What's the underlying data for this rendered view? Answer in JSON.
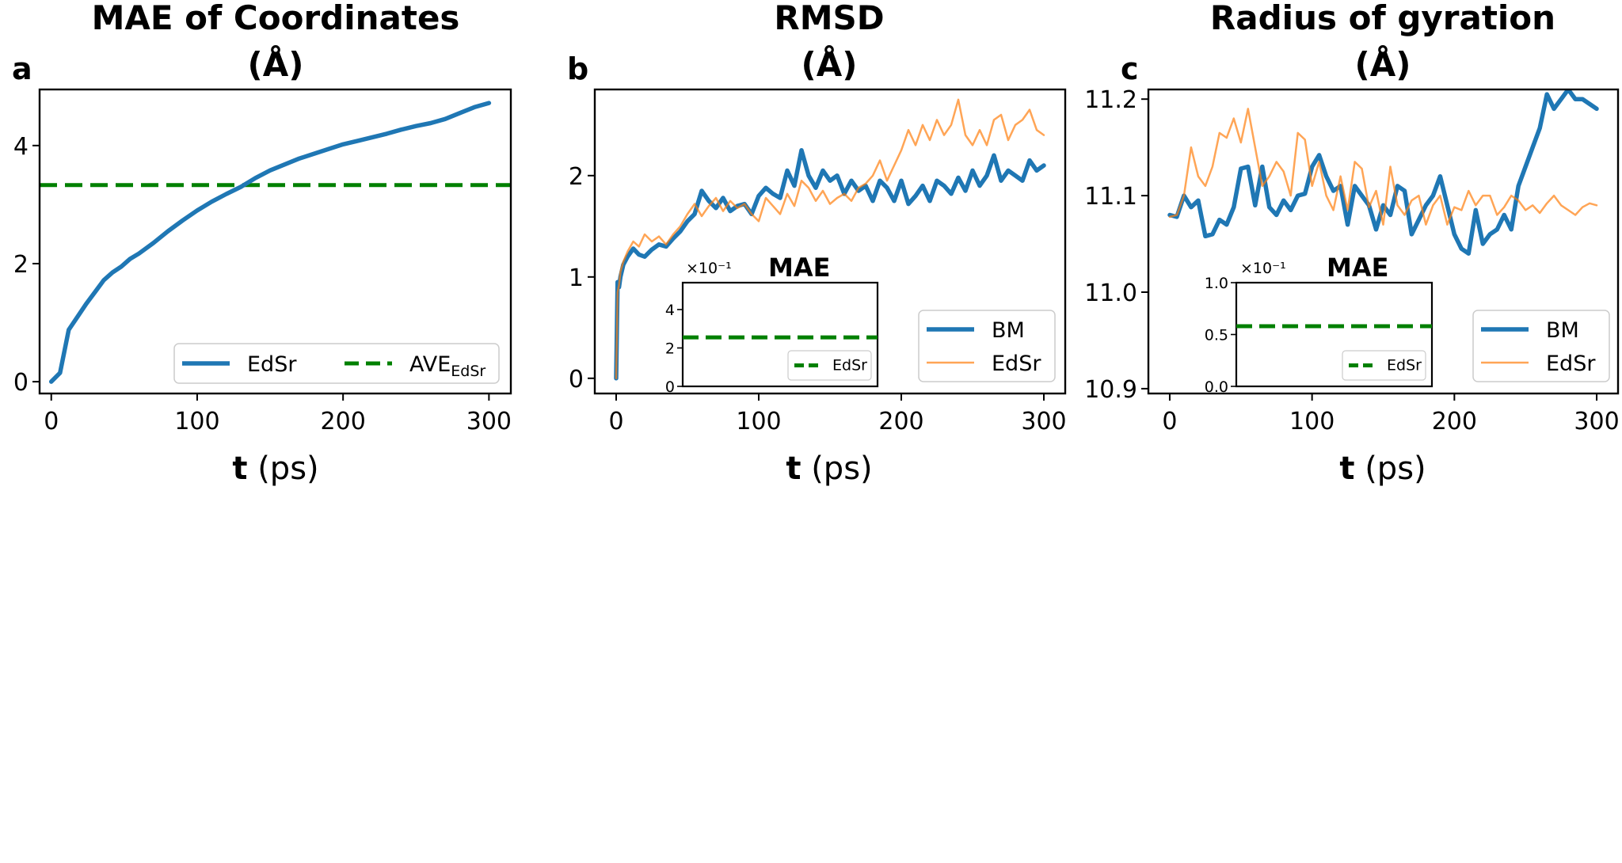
{
  "chart_data": [
    {
      "panel": "a",
      "type": "line",
      "title_line1": "MAE of Coordinates",
      "title_line2": "(Å)",
      "xlabel_bold": "t",
      "xlabel_rest": " (ps)",
      "xlim": [
        -8,
        315
      ],
      "ylim": [
        -0.2,
        4.95
      ],
      "xticks": [
        0,
        100,
        200,
        300
      ],
      "yticks": [
        0,
        2,
        4
      ],
      "legend": [
        "EdSr",
        "AVE",
        "EdSr"
      ],
      "series": [
        {
          "name": "EdSr",
          "color": "#1f77b4",
          "x": [
            0,
            6,
            12,
            18,
            24,
            30,
            36,
            42,
            48,
            54,
            60,
            70,
            80,
            90,
            100,
            110,
            120,
            130,
            140,
            150,
            160,
            170,
            180,
            190,
            200,
            210,
            220,
            230,
            240,
            250,
            260,
            270,
            280,
            290,
            300
          ],
          "y": [
            0,
            0.15,
            0.88,
            1.1,
            1.32,
            1.52,
            1.72,
            1.85,
            1.95,
            2.08,
            2.17,
            2.35,
            2.55,
            2.73,
            2.9,
            3.05,
            3.18,
            3.3,
            3.45,
            3.58,
            3.68,
            3.78,
            3.86,
            3.94,
            4.02,
            4.08,
            4.14,
            4.2,
            4.27,
            4.33,
            4.38,
            4.45,
            4.55,
            4.65,
            4.72
          ]
        }
      ],
      "average": {
        "name": "AVE",
        "subscript": "EdSr",
        "value": 3.33,
        "color": "#008000"
      }
    },
    {
      "panel": "b",
      "type": "line",
      "title_line1": "RMSD",
      "title_line2": "(Å)",
      "xlabel_bold": "t",
      "xlabel_rest": " (ps)",
      "xlim": [
        -15,
        315
      ],
      "ylim": [
        -0.15,
        2.85
      ],
      "xticks": [
        0,
        100,
        200,
        300
      ],
      "yticks": [
        0,
        1,
        2
      ],
      "legend": [
        "BM",
        "EdSr"
      ],
      "series": [
        {
          "name": "BM",
          "color": "#1f77b4",
          "x": [
            0,
            1,
            2,
            3,
            5,
            8,
            12,
            16,
            20,
            25,
            30,
            35,
            40,
            45,
            50,
            55,
            60,
            65,
            70,
            75,
            80,
            85,
            90,
            95,
            100,
            105,
            110,
            115,
            120,
            125,
            130,
            135,
            140,
            145,
            150,
            155,
            160,
            165,
            170,
            175,
            180,
            185,
            190,
            195,
            200,
            205,
            210,
            215,
            220,
            225,
            230,
            235,
            240,
            245,
            250,
            255,
            260,
            265,
            270,
            275,
            280,
            285,
            290,
            295,
            300
          ],
          "y": [
            0,
            0.95,
            0.9,
            1.0,
            1.12,
            1.2,
            1.28,
            1.22,
            1.2,
            1.27,
            1.32,
            1.3,
            1.38,
            1.45,
            1.55,
            1.62,
            1.85,
            1.75,
            1.68,
            1.78,
            1.65,
            1.7,
            1.72,
            1.62,
            1.8,
            1.88,
            1.82,
            1.78,
            2.05,
            1.9,
            2.25,
            2.0,
            1.88,
            2.05,
            1.95,
            2.0,
            1.82,
            1.95,
            1.85,
            1.9,
            1.75,
            1.95,
            1.88,
            1.75,
            1.95,
            1.72,
            1.8,
            1.9,
            1.75,
            1.95,
            1.9,
            1.82,
            1.98,
            1.85,
            2.05,
            1.9,
            2.0,
            2.2,
            1.95,
            2.05,
            2.0,
            1.95,
            2.15,
            2.05,
            2.1
          ]
        },
        {
          "name": "EdSr",
          "color": "#ff7f0e",
          "x": [
            0,
            1,
            2,
            3,
            5,
            8,
            12,
            16,
            20,
            25,
            30,
            35,
            40,
            45,
            50,
            55,
            60,
            65,
            70,
            75,
            80,
            85,
            90,
            95,
            100,
            105,
            110,
            115,
            120,
            125,
            130,
            135,
            140,
            145,
            150,
            155,
            160,
            165,
            170,
            175,
            180,
            185,
            190,
            195,
            200,
            205,
            210,
            215,
            220,
            225,
            230,
            235,
            240,
            245,
            250,
            255,
            260,
            265,
            270,
            275,
            280,
            285,
            290,
            295,
            300
          ],
          "y": [
            0,
            0.85,
            0.92,
            1.05,
            1.15,
            1.25,
            1.35,
            1.3,
            1.42,
            1.35,
            1.4,
            1.32,
            1.42,
            1.5,
            1.62,
            1.72,
            1.6,
            1.7,
            1.78,
            1.65,
            1.75,
            1.68,
            1.72,
            1.62,
            1.55,
            1.78,
            1.7,
            1.62,
            1.82,
            1.7,
            1.95,
            1.88,
            1.75,
            1.85,
            1.72,
            1.78,
            1.82,
            1.75,
            1.88,
            1.92,
            2.0,
            2.15,
            1.95,
            2.1,
            2.25,
            2.45,
            2.3,
            2.5,
            2.35,
            2.55,
            2.4,
            2.5,
            2.75,
            2.4,
            2.3,
            2.45,
            2.3,
            2.55,
            2.6,
            2.35,
            2.5,
            2.55,
            2.65,
            2.45,
            2.4
          ]
        }
      ],
      "inset": {
        "title": "MAE",
        "scale_label": "×10⁻¹",
        "ylim": [
          0,
          5.4
        ],
        "yticks": [
          0,
          2,
          4
        ],
        "value": 2.55,
        "legend": "EdSr",
        "color": "#008000"
      }
    },
    {
      "panel": "c",
      "type": "line",
      "title_line1": "Radius of gyration",
      "title_line2": "(Å)",
      "xlabel_bold": "t",
      "xlabel_rest": " (ps)",
      "xlim": [
        -15,
        315
      ],
      "ylim": [
        10.895,
        11.21
      ],
      "xticks": [
        0,
        100,
        200,
        300
      ],
      "yticks": [
        10.9,
        11.0,
        11.1,
        11.2
      ],
      "ytick_labels": [
        "10.9",
        "11.0",
        "11.1",
        "11.2"
      ],
      "legend": [
        "BM",
        "EdSr"
      ],
      "series": [
        {
          "name": "BM",
          "color": "#1f77b4",
          "x": [
            0,
            5,
            10,
            15,
            20,
            25,
            30,
            35,
            40,
            45,
            50,
            55,
            60,
            65,
            70,
            75,
            80,
            85,
            90,
            95,
            100,
            105,
            110,
            115,
            120,
            125,
            130,
            135,
            140,
            145,
            150,
            155,
            160,
            165,
            170,
            175,
            180,
            185,
            190,
            195,
            200,
            205,
            210,
            215,
            220,
            225,
            230,
            235,
            240,
            245,
            250,
            255,
            260,
            265,
            270,
            275,
            280,
            285,
            290,
            295,
            300
          ],
          "y": [
            11.08,
            11.078,
            11.1,
            11.088,
            11.095,
            11.058,
            11.06,
            11.075,
            11.07,
            11.088,
            11.128,
            11.13,
            11.09,
            11.13,
            11.088,
            11.08,
            11.095,
            11.085,
            11.1,
            11.102,
            11.13,
            11.142,
            11.12,
            11.105,
            11.11,
            11.07,
            11.11,
            11.1,
            11.09,
            11.065,
            11.09,
            11.08,
            11.11,
            11.105,
            11.06,
            11.075,
            11.09,
            11.1,
            11.12,
            11.09,
            11.06,
            11.045,
            11.04,
            11.085,
            11.05,
            11.06,
            11.065,
            11.08,
            11.065,
            11.11,
            11.13,
            11.15,
            11.17,
            11.205,
            11.19,
            11.2,
            11.21,
            11.2,
            11.2,
            11.195,
            11.19
          ]
        },
        {
          "name": "EdSr",
          "color": "#ff7f0e",
          "x": [
            0,
            5,
            10,
            15,
            20,
            25,
            30,
            35,
            40,
            45,
            50,
            55,
            60,
            65,
            70,
            75,
            80,
            85,
            90,
            95,
            100,
            105,
            110,
            115,
            120,
            125,
            130,
            135,
            140,
            145,
            150,
            155,
            160,
            165,
            170,
            175,
            180,
            185,
            190,
            195,
            200,
            205,
            210,
            215,
            220,
            225,
            230,
            235,
            240,
            245,
            250,
            255,
            260,
            265,
            270,
            275,
            280,
            285,
            290,
            295,
            300
          ],
          "y": [
            11.078,
            11.08,
            11.1,
            11.15,
            11.12,
            11.11,
            11.13,
            11.165,
            11.16,
            11.18,
            11.155,
            11.19,
            11.15,
            11.11,
            11.12,
            11.135,
            11.125,
            11.1,
            11.165,
            11.158,
            11.11,
            11.135,
            11.1,
            11.085,
            11.12,
            11.085,
            11.135,
            11.128,
            11.088,
            11.105,
            11.07,
            11.13,
            11.09,
            11.08,
            11.095,
            11.1,
            11.07,
            11.09,
            11.1,
            11.07,
            11.088,
            11.085,
            11.105,
            11.09,
            11.1,
            11.1,
            11.08,
            11.088,
            11.1,
            11.095,
            11.085,
            11.09,
            11.082,
            11.092,
            11.1,
            11.09,
            11.085,
            11.08,
            11.088,
            11.092,
            11.09
          ]
        }
      ],
      "inset": {
        "title": "MAE",
        "scale_label": "×10⁻¹",
        "ylim": [
          0,
          1.0
        ],
        "yticks": [
          0.0,
          0.5,
          1.0
        ],
        "ytick_labels": [
          "0.0",
          "0.5",
          "1.0"
        ],
        "value": 0.58,
        "legend": "EdSr",
        "color": "#008000"
      }
    }
  ]
}
